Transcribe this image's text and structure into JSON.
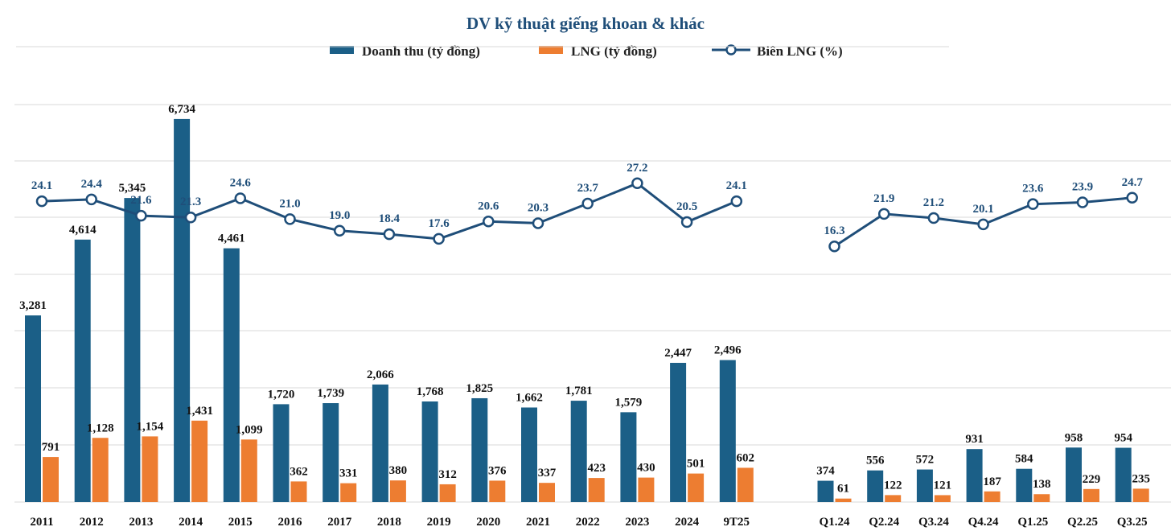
{
  "chart_data": {
    "type": "bar",
    "title": "DV kỹ thuật giếng khoan & khác",
    "legend_position": "top",
    "grid": true,
    "categories": [
      "2011",
      "2012",
      "2013",
      "2014",
      "2015",
      "2016",
      "2017",
      "2018",
      "2019",
      "2020",
      "2021",
      "2022",
      "2023",
      "2024",
      "9T25",
      "Q1.24",
      "Q2.24",
      "Q3.24",
      "Q4.24",
      "Q1.25",
      "Q2.25",
      "Q3.25"
    ],
    "series": [
      {
        "name": "Doanh thu (tỷ đồng)",
        "kind": "bar",
        "color": "#1b5f87",
        "values": [
          3281,
          4614,
          5345,
          6734,
          4461,
          1720,
          1739,
          2066,
          1768,
          1825,
          1662,
          1781,
          1579,
          2447,
          2496,
          374,
          556,
          572,
          931,
          584,
          958,
          954
        ],
        "labels": [
          "3,281",
          "4,614",
          "5,345",
          "6,734",
          "4,461",
          "1,720",
          "1,739",
          "2,066",
          "1,768",
          "1,825",
          "1,662",
          "1,781",
          "1,579",
          "2,447",
          "2,496",
          "374",
          "556",
          "572",
          "931",
          "584",
          "958",
          "954"
        ]
      },
      {
        "name": "LNG (tỷ đồng)",
        "kind": "bar",
        "color": "#ed7d31",
        "values": [
          791,
          1128,
          1154,
          1431,
          1099,
          362,
          331,
          380,
          312,
          376,
          337,
          423,
          430,
          501,
          602,
          61,
          122,
          121,
          187,
          138,
          229,
          235
        ],
        "labels": [
          "791",
          "1,128",
          "1,154",
          "1,431",
          "1,099",
          "362",
          "331",
          "380",
          "312",
          "376",
          "337",
          "423",
          "430",
          "501",
          "602",
          "61",
          "122",
          "121",
          "187",
          "138",
          "229",
          "235"
        ]
      },
      {
        "name": "Biên LNG (%)",
        "kind": "line",
        "color": "#1f4e79",
        "values": [
          24.1,
          24.4,
          21.6,
          21.3,
          24.6,
          21.0,
          19.0,
          18.4,
          17.6,
          20.6,
          20.3,
          23.7,
          27.2,
          20.5,
          24.1,
          16.3,
          21.9,
          21.2,
          20.1,
          23.6,
          23.9,
          24.7
        ],
        "labels": [
          "24.1",
          "24.4",
          "21.6",
          "21.3",
          "24.6",
          "21.0",
          "19.0",
          "18.4",
          "17.6",
          "20.6",
          "20.3",
          "23.7",
          "27.2",
          "20.5",
          "24.1",
          "16.3",
          "21.9",
          "21.2",
          "20.1",
          "23.6",
          "23.9",
          "24.7"
        ],
        "line_groups": [
          [
            0,
            14
          ],
          [
            15,
            21
          ]
        ]
      }
    ]
  }
}
